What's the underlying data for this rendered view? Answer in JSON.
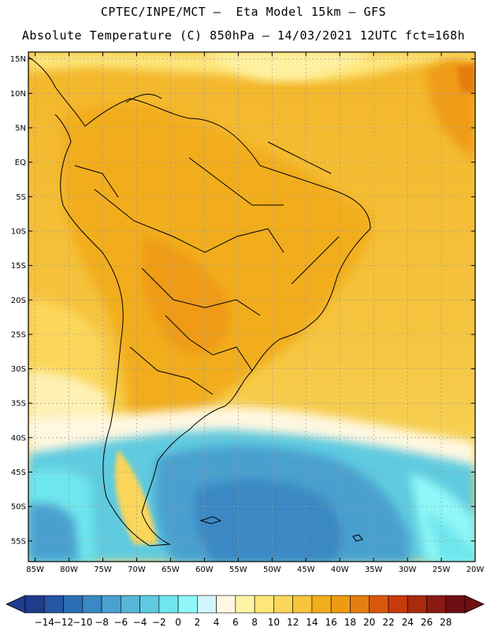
{
  "header": {
    "line1": "CPTEC/INPE/MCT –  Eta Model 15km – GFS",
    "line2": "Absolute Temperature (C) 850hPa – 14/03/2021 12UTC fct=168h"
  },
  "map": {
    "region": "South America",
    "lat_ticks": [
      "15N",
      "10N",
      "5N",
      "EQ",
      "5S",
      "10S",
      "15S",
      "20S",
      "25S",
      "30S",
      "35S",
      "40S",
      "45S",
      "50S",
      "55S"
    ],
    "lon_ticks": [
      "85W",
      "80W",
      "75W",
      "70W",
      "65W",
      "60W",
      "55W",
      "50W",
      "45W",
      "40W",
      "35W",
      "30W",
      "25W",
      "20W"
    ],
    "lat_range": [
      -58,
      16
    ],
    "lon_range": [
      -86,
      -20
    ],
    "grid": true
  },
  "colorbar": {
    "labels": [
      "-14",
      "-12",
      "-10",
      "-8",
      "-6",
      "-4",
      "-2",
      "0",
      "2",
      "4",
      "6",
      "8",
      "10",
      "12",
      "14",
      "16",
      "18",
      "20",
      "22",
      "24",
      "26",
      "28"
    ],
    "colors": [
      "#1f3b8c",
      "#2456a4",
      "#2c6fb6",
      "#3a88c4",
      "#4aa0cf",
      "#58b6d6",
      "#5ecbe0",
      "#6ee6ee",
      "#8ff7f7",
      "#d2f6fb",
      "#fff7e0",
      "#fff4a6",
      "#fde67a",
      "#fbd65a",
      "#f7c43c",
      "#f2ad1c",
      "#ef9b12",
      "#e57d10",
      "#d9570c",
      "#c73a0c",
      "#a92a0c",
      "#8b1a12",
      "#6e0f14"
    ],
    "under_color": "#1f3b8c",
    "over_color": "#6e0f14"
  }
}
